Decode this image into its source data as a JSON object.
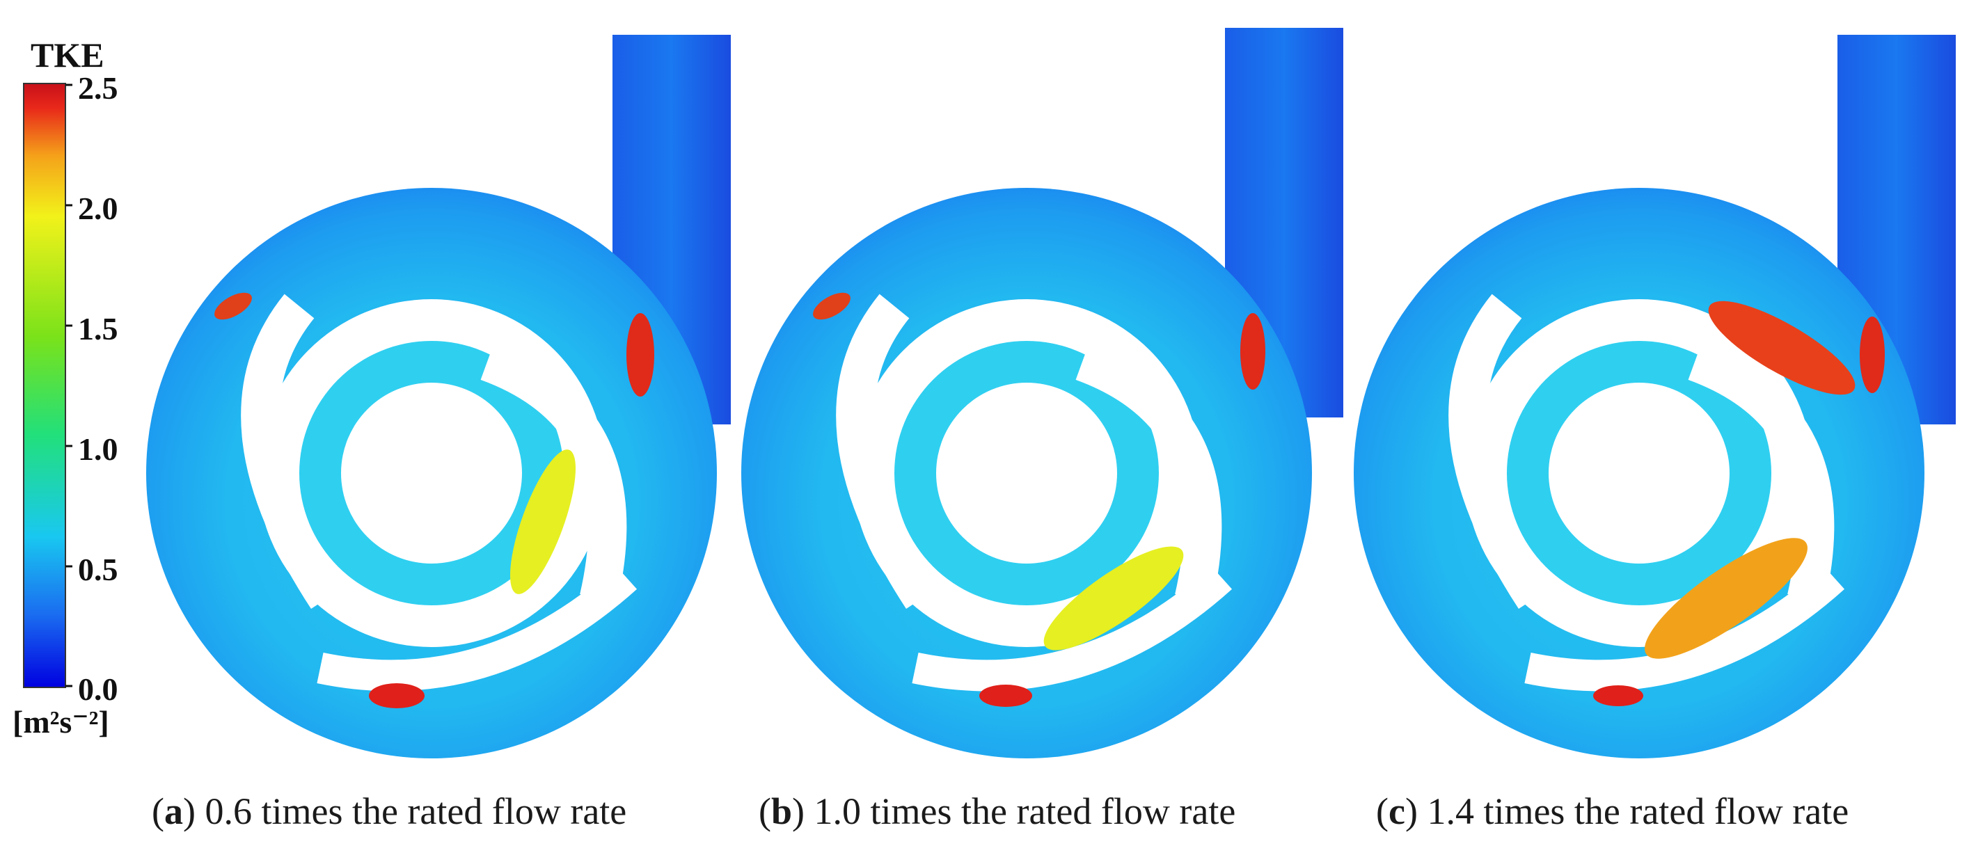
{
  "colorbar": {
    "title": "TKE",
    "unit": "[m²s⁻²]",
    "ticks": [
      "2.5",
      "2.0",
      "1.5",
      "1.0",
      "0.5",
      "0.0"
    ],
    "range": [
      0.0,
      2.5
    ],
    "colors": [
      "#0000e0",
      "#1a6cf0",
      "#19c8f0",
      "#22e07a",
      "#7ae21a",
      "#f2f21a",
      "#f5a21a",
      "#e8281a",
      "#c8101a"
    ]
  },
  "panels": [
    {
      "label": "a",
      "caption": "0.6 times the rated flow rate"
    },
    {
      "label": "b",
      "caption": "1.0 times the rated flow rate"
    },
    {
      "label": "c",
      "caption": "1.4 times the rated flow rate"
    }
  ]
}
